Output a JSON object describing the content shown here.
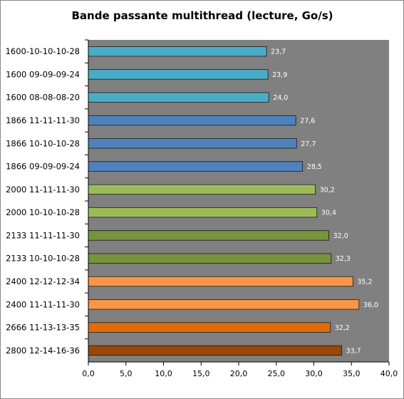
{
  "chart_data": {
    "type": "bar",
    "orientation": "horizontal",
    "title": "Bande passante multithread (lecture, Go/s)",
    "categories": [
      "1600-10-10-10-28",
      "1600 09-09-09-24",
      "1600 08-08-08-20",
      "1866 11-11-11-30",
      "1866 10-10-10-28",
      "1866 09-09-09-24",
      "2000 11-11-11-30",
      "2000 10-10-10-28",
      "2133 11-11-11-30",
      "2133 10-10-10-28",
      "2400 12-12-12-34",
      "2400 11-11-11-30",
      "2666 11-13-13-35",
      "2800 12-14-16-36"
    ],
    "values": [
      23.7,
      23.9,
      24.0,
      27.6,
      27.7,
      28.5,
      30.2,
      30.4,
      32.0,
      32.3,
      35.2,
      36.0,
      32.2,
      33.7
    ],
    "value_labels": [
      "23,7",
      "23,9",
      "24,0",
      "27,6",
      "27,7",
      "28,5",
      "30,2",
      "30,4",
      "32,0",
      "32,3",
      "35,2",
      "36,0",
      "32,2",
      "33,7"
    ],
    "bar_colors": [
      "#4bacc6",
      "#4bacc6",
      "#4bacc6",
      "#4f81bd",
      "#4f81bd",
      "#4f81bd",
      "#9bbb59",
      "#9bbb59",
      "#77933c",
      "#77933c",
      "#f79646",
      "#f79646",
      "#e36c09",
      "#984807"
    ],
    "xlim": [
      0,
      40
    ],
    "ticks": [
      0,
      5,
      10,
      15,
      20,
      25,
      30,
      35,
      40
    ],
    "tick_labels": [
      "0,0",
      "5,0",
      "10,0",
      "15,0",
      "20,0",
      "25,0",
      "30,0",
      "35,0",
      "40,0"
    ],
    "plot_background": "#808080",
    "grid": false,
    "legend": "none"
  }
}
